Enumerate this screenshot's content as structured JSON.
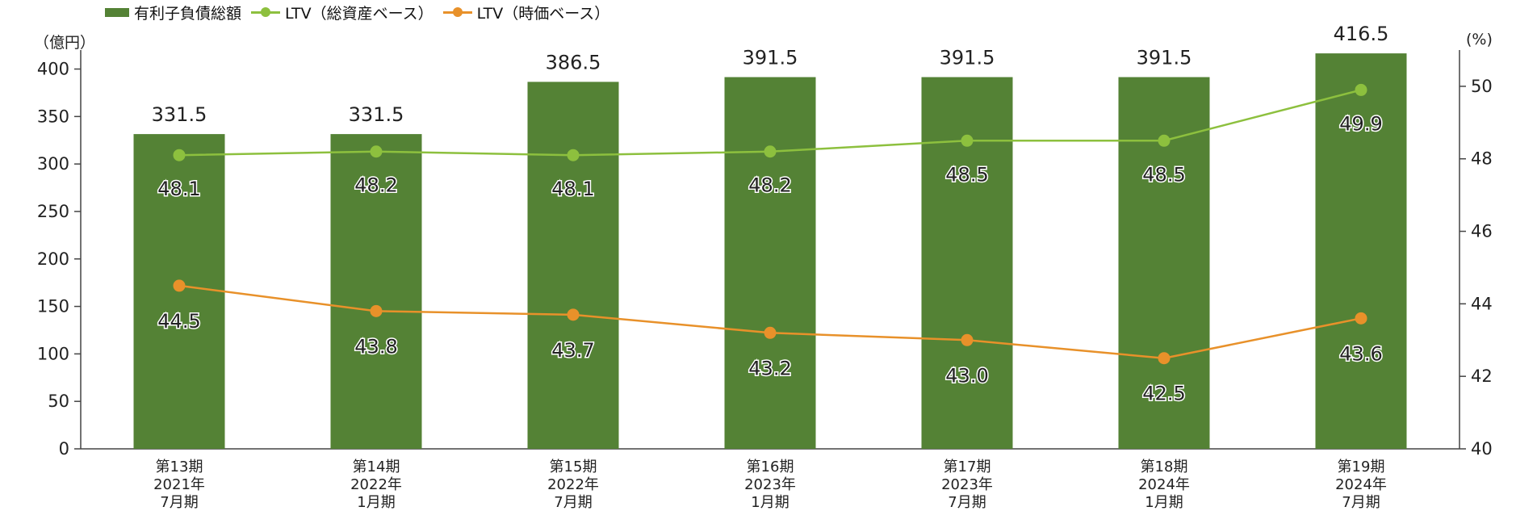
{
  "legend": {
    "bar": "有利子負債総額",
    "ltv_total": "LTV（総資産ベース）",
    "ltv_market": "LTV（時価ベース）"
  },
  "units": {
    "left": "（億円）",
    "right": "(%)"
  },
  "colors": {
    "bar": "#548235",
    "ltv_total": "#8DC03E",
    "ltv_market": "#E8912A",
    "axis": "#444444"
  },
  "chart_data": {
    "type": "bar",
    "categories": [
      [
        "第13期",
        "2021年",
        "7月期"
      ],
      [
        "第14期",
        "2022年",
        "1月期"
      ],
      [
        "第15期",
        "2022年",
        "7月期"
      ],
      [
        "第16期",
        "2023年",
        "1月期"
      ],
      [
        "第17期",
        "2023年",
        "7月期"
      ],
      [
        "第18期",
        "2024年",
        "1月期"
      ],
      [
        "第19期",
        "2024年",
        "7月期"
      ]
    ],
    "series": [
      {
        "name": "有利子負債総額",
        "type": "bar",
        "axis": "left",
        "values": [
          331.5,
          331.5,
          386.5,
          391.5,
          391.5,
          391.5,
          416.5
        ],
        "labels": [
          "331.5",
          "331.5",
          "386.5",
          "391.5",
          "391.5",
          "391.5",
          "416.5"
        ]
      },
      {
        "name": "LTV（総資産ベース）",
        "type": "line",
        "axis": "right",
        "values": [
          48.1,
          48.2,
          48.1,
          48.2,
          48.5,
          48.5,
          49.9
        ],
        "labels": [
          "48.1",
          "48.2",
          "48.1",
          "48.2",
          "48.5",
          "48.5",
          "49.9"
        ]
      },
      {
        "name": "LTV（時価ベース）",
        "type": "line",
        "axis": "right",
        "values": [
          44.5,
          43.8,
          43.7,
          43.2,
          43.0,
          42.5,
          43.6
        ],
        "labels": [
          "44.5",
          "43.8",
          "43.7",
          "43.2",
          "43.0",
          "42.5",
          "43.6"
        ]
      }
    ],
    "y_left": {
      "min": 0,
      "max": 420,
      "ticks": [
        "0",
        "50",
        "100",
        "150",
        "200",
        "250",
        "300",
        "350",
        "400"
      ]
    },
    "y_right": {
      "min": 40,
      "max": 51,
      "ticks": [
        "40",
        "42",
        "44",
        "46",
        "48",
        "50"
      ]
    },
    "legend_position": "top-left",
    "grid": false
  }
}
